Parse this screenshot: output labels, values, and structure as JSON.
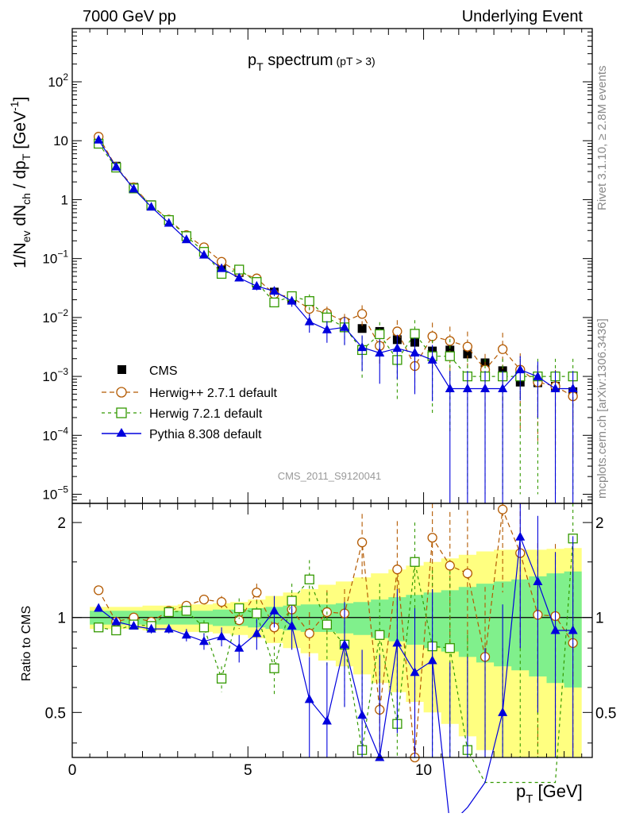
{
  "header": {
    "left": "7000 GeV pp",
    "right": "Underlying Event"
  },
  "title": {
    "main": "p",
    "sub": "T",
    "rest": " spectrum",
    "cut": "(pT >  3)"
  },
  "side_labels": {
    "rivet": "Rivet 3.1.10, ≥ 2.8M events",
    "mcplots": "mcplots.cern.ch [arXiv:1306.3436]"
  },
  "watermark": "CMS_2011_S9120041",
  "upper_ylabel": {
    "a": "1/N",
    "a_sub": "ev",
    "b": " dN",
    "b_sub": "ch",
    "c": " / dp",
    "c_sub": "T",
    "d": " [GeV",
    "d_sup": "-1",
    "e": "]"
  },
  "lower_ylabel": "Ratio to CMS",
  "xlabel": {
    "a": "p",
    "sub": "T",
    "b": " [GeV]"
  },
  "upper_yticks": [
    {
      "v": 100,
      "m": "10",
      "e": "2"
    },
    {
      "v": 10,
      "m": "10",
      "e": ""
    },
    {
      "v": 1,
      "m": "1",
      "e": ""
    },
    {
      "v": 0.1,
      "m": "10",
      "e": "−1"
    },
    {
      "v": 0.01,
      "m": "10",
      "e": "−2"
    },
    {
      "v": 0.001,
      "m": "10",
      "e": "−3"
    },
    {
      "v": 0.0001,
      "m": "10",
      "e": "−4"
    },
    {
      "v": 1e-05,
      "m": "10",
      "e": "−5"
    }
  ],
  "lower_yticks": [
    {
      "v": 0.5,
      "l": "0.5"
    },
    {
      "v": 1,
      "l": "1"
    },
    {
      "v": 2,
      "l": "2"
    }
  ],
  "xticks": [
    {
      "v": 0,
      "l": "0"
    },
    {
      "v": 5,
      "l": "5"
    },
    {
      "v": 10,
      "l": "10"
    }
  ],
  "legend": [
    {
      "key": "cms",
      "label": "CMS"
    },
    {
      "key": "herwigpp",
      "label": "Herwig++ 2.7.1 default"
    },
    {
      "key": "herwig7",
      "label": "Herwig 7.2.1 default"
    },
    {
      "key": "pythia",
      "label": "Pythia 8.308 default"
    }
  ],
  "colors": {
    "cms": "#000000",
    "herwigpp": "#b35900",
    "herwig7": "#339900",
    "pythia": "#0000dd",
    "band_outer": "#ffff80",
    "band_inner": "#80f08c"
  },
  "chart_data": {
    "type": "scatter",
    "x_range": [
      0,
      14.8
    ],
    "upper_ylim": [
      7e-06,
      800
    ],
    "upper_yscale": "log",
    "ratio_ylim": [
      0.36,
      2.3
    ],
    "ratio_yscale": "log",
    "x": [
      0.75,
      1.25,
      1.75,
      2.25,
      2.75,
      3.25,
      3.75,
      4.25,
      4.75,
      5.25,
      5.75,
      6.25,
      6.75,
      7.25,
      7.75,
      8.25,
      8.75,
      9.25,
      9.75,
      10.25,
      10.75,
      11.25,
      11.75,
      12.25,
      12.75,
      13.25,
      13.75,
      14.25
    ],
    "series": [
      {
        "key": "cms",
        "name": "CMS",
        "marker": "square",
        "values": [
          9.6,
          3.7,
          1.62,
          0.82,
          0.44,
          0.24,
          0.135,
          0.078,
          0.058,
          0.038,
          0.027,
          0.02,
          0.016,
          0.011,
          0.0082,
          0.0065,
          0.0058,
          0.0042,
          0.0038,
          0.0027,
          0.0028,
          0.0024,
          0.0017,
          0.00125,
          0.0008,
          0.00078,
          0.00068,
          0.00055
        ],
        "ratio_band_inner": [
          0.05,
          0.05,
          0.05,
          0.05,
          0.05,
          0.05,
          0.05,
          0.06,
          0.06,
          0.07,
          0.08,
          0.09,
          0.1,
          0.1,
          0.11,
          0.12,
          0.14,
          0.16,
          0.18,
          0.2,
          0.22,
          0.25,
          0.28,
          0.3,
          0.32,
          0.35,
          0.38,
          0.4
        ],
        "ratio_band_outer": [
          0.08,
          0.08,
          0.08,
          0.09,
          0.09,
          0.1,
          0.1,
          0.11,
          0.12,
          0.14,
          0.17,
          0.2,
          0.23,
          0.27,
          0.3,
          0.34,
          0.38,
          0.42,
          0.46,
          0.5,
          0.54,
          0.58,
          0.62,
          0.64,
          0.64,
          0.64,
          0.65,
          0.66
        ]
      },
      {
        "key": "herwigpp",
        "name": "Herwig++ 2.7.1 default",
        "marker": "open-circle",
        "dash": "6,4",
        "values": [
          11.7,
          3.6,
          1.62,
          0.8,
          0.46,
          0.25,
          0.155,
          0.088,
          0.058,
          0.046,
          0.025,
          0.022,
          0.014,
          0.0118,
          0.0085,
          0.0115,
          0.0033,
          0.0058,
          0.0015,
          0.0048,
          0.004,
          0.0032,
          0.0013,
          0.0029,
          0.0013,
          0.0008,
          0.00068,
          0.00046
        ],
        "ratio": [
          1.22,
          0.97,
          1.0,
          0.97,
          1.05,
          1.09,
          1.14,
          1.12,
          0.98,
          1.2,
          0.93,
          1.06,
          0.89,
          1.04,
          1.03,
          1.73,
          0.51,
          1.42,
          0.36,
          1.79,
          1.46,
          1.38,
          0.75,
          2.2,
          1.6,
          1.02,
          1.01,
          0.83
        ],
        "ratio_err": [
          0.02,
          0.02,
          0.02,
          0.02,
          0.03,
          0.03,
          0.04,
          0.05,
          0.06,
          0.08,
          0.1,
          0.12,
          0.15,
          0.18,
          0.2,
          0.4,
          0.25,
          0.6,
          0.3,
          0.8,
          0.7,
          0.8,
          0.5,
          1.0,
          0.8,
          0.7,
          0.7,
          0.6
        ],
        "rel_err": [
          0.02,
          0.03,
          0.04,
          0.05,
          0.06,
          0.07,
          0.08,
          0.1,
          0.12,
          0.15,
          0.18,
          0.2,
          0.25,
          0.3,
          0.35,
          0.4,
          0.5,
          0.55,
          0.6,
          0.7,
          0.75,
          0.8,
          0.85,
          0.9,
          0.9,
          0.9,
          0.9,
          0.9
        ]
      },
      {
        "key": "herwig7",
        "name": "Herwig 7.2.1 default",
        "marker": "open-square",
        "dash": "4,4",
        "values": [
          8.9,
          3.5,
          1.55,
          0.8,
          0.45,
          0.24,
          0.13,
          0.055,
          0.065,
          0.04,
          0.018,
          0.023,
          0.019,
          0.01,
          0.0068,
          0.0028,
          0.0052,
          0.0019,
          0.0053,
          0.0022,
          0.0022,
          0.001,
          0.001,
          0.001,
          0.001,
          0.001,
          0.001,
          0.001
        ],
        "ratio": [
          0.93,
          0.91,
          0.95,
          0.94,
          1.04,
          1.05,
          0.93,
          0.64,
          1.07,
          1.03,
          0.69,
          1.13,
          1.32,
          0.95,
          0.82,
          0.38,
          0.88,
          0.46,
          1.5,
          0.81,
          0.8,
          0.38,
          0.3,
          0.3,
          0.3,
          0.3,
          0.3,
          1.78
        ],
        "ratio_err": [
          0.02,
          0.02,
          0.02,
          0.02,
          0.03,
          0.04,
          0.05,
          0.06,
          0.08,
          0.1,
          0.12,
          0.15,
          0.2,
          0.25,
          0.3,
          0.3,
          0.4,
          0.4,
          0.5,
          0.6,
          0.6,
          0.5,
          0.5,
          0.5,
          0.5,
          0.5,
          0.5,
          1.0
        ],
        "rel_err": [
          0.02,
          0.03,
          0.04,
          0.05,
          0.06,
          0.07,
          0.08,
          0.12,
          0.1,
          0.15,
          0.2,
          0.2,
          0.3,
          0.35,
          0.5,
          0.7,
          0.6,
          0.8,
          0.7,
          0.9,
          0.95,
          0.99,
          0.99,
          0.99,
          0.99,
          0.99,
          0.99,
          0.99
        ]
      },
      {
        "key": "pythia",
        "name": "Pythia 8.308 default",
        "marker": "filled-triangle",
        "dash": "",
        "values": [
          10.3,
          3.6,
          1.52,
          0.75,
          0.4,
          0.21,
          0.115,
          0.068,
          0.047,
          0.034,
          0.028,
          0.019,
          0.0085,
          0.0062,
          0.0068,
          0.0031,
          0.0025,
          0.003,
          0.0025,
          0.0019,
          0.00062,
          0.00062,
          0.00062,
          0.00062,
          0.0013,
          0.00099,
          0.00062,
          0.00062
        ],
        "ratio": [
          1.07,
          0.97,
          0.94,
          0.92,
          0.92,
          0.88,
          0.84,
          0.87,
          0.8,
          0.89,
          1.05,
          0.94,
          0.55,
          0.47,
          0.82,
          0.49,
          0.36,
          0.83,
          0.67,
          0.73,
          0.22,
          0.25,
          0.3,
          0.5,
          1.8,
          1.3,
          0.91,
          0.91
        ],
        "ratio_err": [
          0.02,
          0.02,
          0.02,
          0.03,
          0.03,
          0.04,
          0.05,
          0.06,
          0.08,
          0.1,
          0.12,
          0.15,
          0.2,
          0.25,
          0.3,
          0.3,
          0.4,
          0.4,
          0.4,
          0.5,
          0.5,
          0.5,
          0.5,
          0.6,
          1.0,
          0.8,
          0.7,
          0.9
        ],
        "rel_err": [
          0.02,
          0.03,
          0.04,
          0.05,
          0.06,
          0.07,
          0.08,
          0.1,
          0.12,
          0.15,
          0.18,
          0.2,
          0.35,
          0.4,
          0.5,
          0.6,
          0.7,
          0.7,
          0.8,
          0.8,
          0.99,
          0.99,
          0.99,
          0.99,
          0.7,
          0.8,
          0.99,
          0.99
        ]
      }
    ]
  }
}
